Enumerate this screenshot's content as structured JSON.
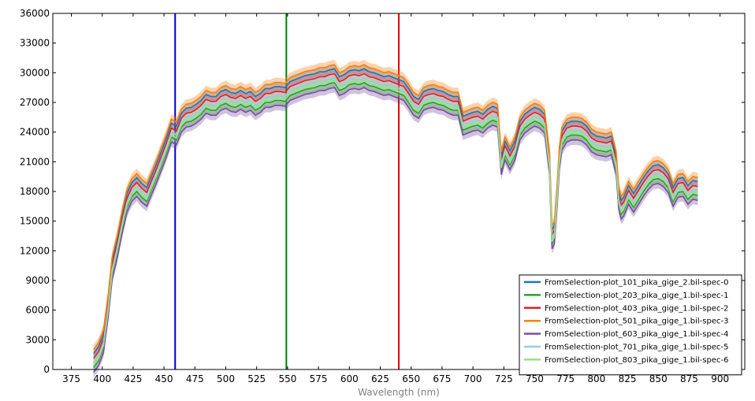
{
  "chart_data": {
    "type": "line",
    "title": "",
    "xlabel": "Wavelength (nm)",
    "ylabel": "",
    "xlim": [
      360,
      920
    ],
    "ylim": [
      0,
      36000
    ],
    "xticks": [
      375,
      400,
      425,
      450,
      475,
      500,
      525,
      550,
      575,
      600,
      625,
      650,
      675,
      700,
      725,
      750,
      775,
      800,
      825,
      850,
      875,
      900
    ],
    "yticks": [
      0,
      3000,
      6000,
      9000,
      12000,
      15000,
      18000,
      21000,
      24000,
      27000,
      30000,
      33000,
      36000
    ],
    "grid": false,
    "legend_position": "lower-right",
    "vertical_lines": [
      {
        "x": 459,
        "color": "#0000c8"
      },
      {
        "x": 549,
        "color": "#008000"
      },
      {
        "x": 640,
        "color": "#e00000"
      }
    ],
    "base_x": [
      393,
      397,
      401,
      405,
      408,
      412,
      416,
      420,
      424,
      428,
      432,
      436,
      440,
      444,
      448,
      452,
      456,
      460,
      464,
      468,
      472,
      476,
      480,
      484,
      488,
      492,
      496,
      500,
      504,
      508,
      512,
      516,
      520,
      524,
      528,
      532,
      536,
      540,
      544,
      548,
      552,
      556,
      560,
      564,
      568,
      572,
      576,
      580,
      584,
      588,
      592,
      596,
      600,
      604,
      608,
      612,
      616,
      620,
      624,
      628,
      632,
      636,
      640,
      644,
      648,
      652,
      656,
      660,
      664,
      668,
      672,
      676,
      680,
      684,
      688,
      692,
      696,
      700,
      704,
      708,
      712,
      716,
      720,
      723,
      726,
      730,
      734,
      738,
      742,
      746,
      750,
      754,
      758,
      762,
      764,
      766,
      768,
      770,
      772,
      776,
      780,
      784,
      788,
      792,
      796,
      800,
      804,
      808,
      812,
      816,
      818,
      820,
      822,
      826,
      830,
      834,
      838,
      842,
      846,
      850,
      854,
      858,
      862,
      866,
      870,
      874,
      878,
      882
    ],
    "base_y": [
      1000,
      1700,
      3000,
      6800,
      10400,
      12500,
      15000,
      17200,
      18300,
      18800,
      18200,
      17800,
      19000,
      20200,
      21500,
      22800,
      24300,
      24000,
      25300,
      25800,
      25900,
      26200,
      26600,
      27200,
      27000,
      27000,
      27500,
      27700,
      27400,
      27300,
      27600,
      27300,
      27500,
      27000,
      27300,
      27800,
      27800,
      28000,
      28000,
      27900,
      28500,
      28700,
      28900,
      29100,
      29200,
      29300,
      29500,
      29500,
      29700,
      29800,
      29000,
      29200,
      29600,
      29700,
      29600,
      29800,
      29500,
      29400,
      29200,
      29000,
      29100,
      28900,
      28700,
      28500,
      27800,
      27000,
      26700,
      27500,
      27700,
      27800,
      27600,
      27500,
      27200,
      27000,
      27000,
      25000,
      25200,
      25400,
      25500,
      25200,
      25700,
      26000,
      25800,
      21000,
      22500,
      21500,
      22500,
      24500,
      25200,
      25600,
      25900,
      25700,
      25200,
      21000,
      13500,
      14000,
      17500,
      21500,
      23500,
      24300,
      24500,
      24500,
      24400,
      24000,
      23300,
      23000,
      22900,
      22800,
      23000,
      21000,
      17500,
      16500,
      16800,
      18000,
      17200,
      18000,
      18800,
      19500,
      20000,
      20100,
      19800,
      19200,
      17800,
      18700,
      18800,
      18000,
      18500,
      18400
    ],
    "series": [
      {
        "name": "FromSelection-plot_101_pika_gige_2.bil-spec-0",
        "color": "#1f77b4",
        "offset": 600
      },
      {
        "name": "FromSelection-plot_203_pika_gige_1.bil-spec-1",
        "color": "#2ca02c",
        "offset": -800
      },
      {
        "name": "FromSelection-plot_403_pika_gige_1.bil-spec-2",
        "color": "#d62728",
        "offset": 100
      },
      {
        "name": "FromSelection-plot_501_pika_gige_1.bil-spec-3",
        "color": "#ff7f0e",
        "offset": 1000
      },
      {
        "name": "FromSelection-plot_603_pika_gige_1.bil-spec-4",
        "color": "#7b4fa0",
        "offset": -1300
      },
      {
        "name": "FromSelection-plot_701_pika_gige_1.bil-spec-5",
        "color": "#9ecae1",
        "offset": -300
      },
      {
        "name": "FromSelection-plot_803_pika_gige_1.bil-spec-6",
        "color": "#98df8a",
        "offset": -600
      }
    ]
  }
}
